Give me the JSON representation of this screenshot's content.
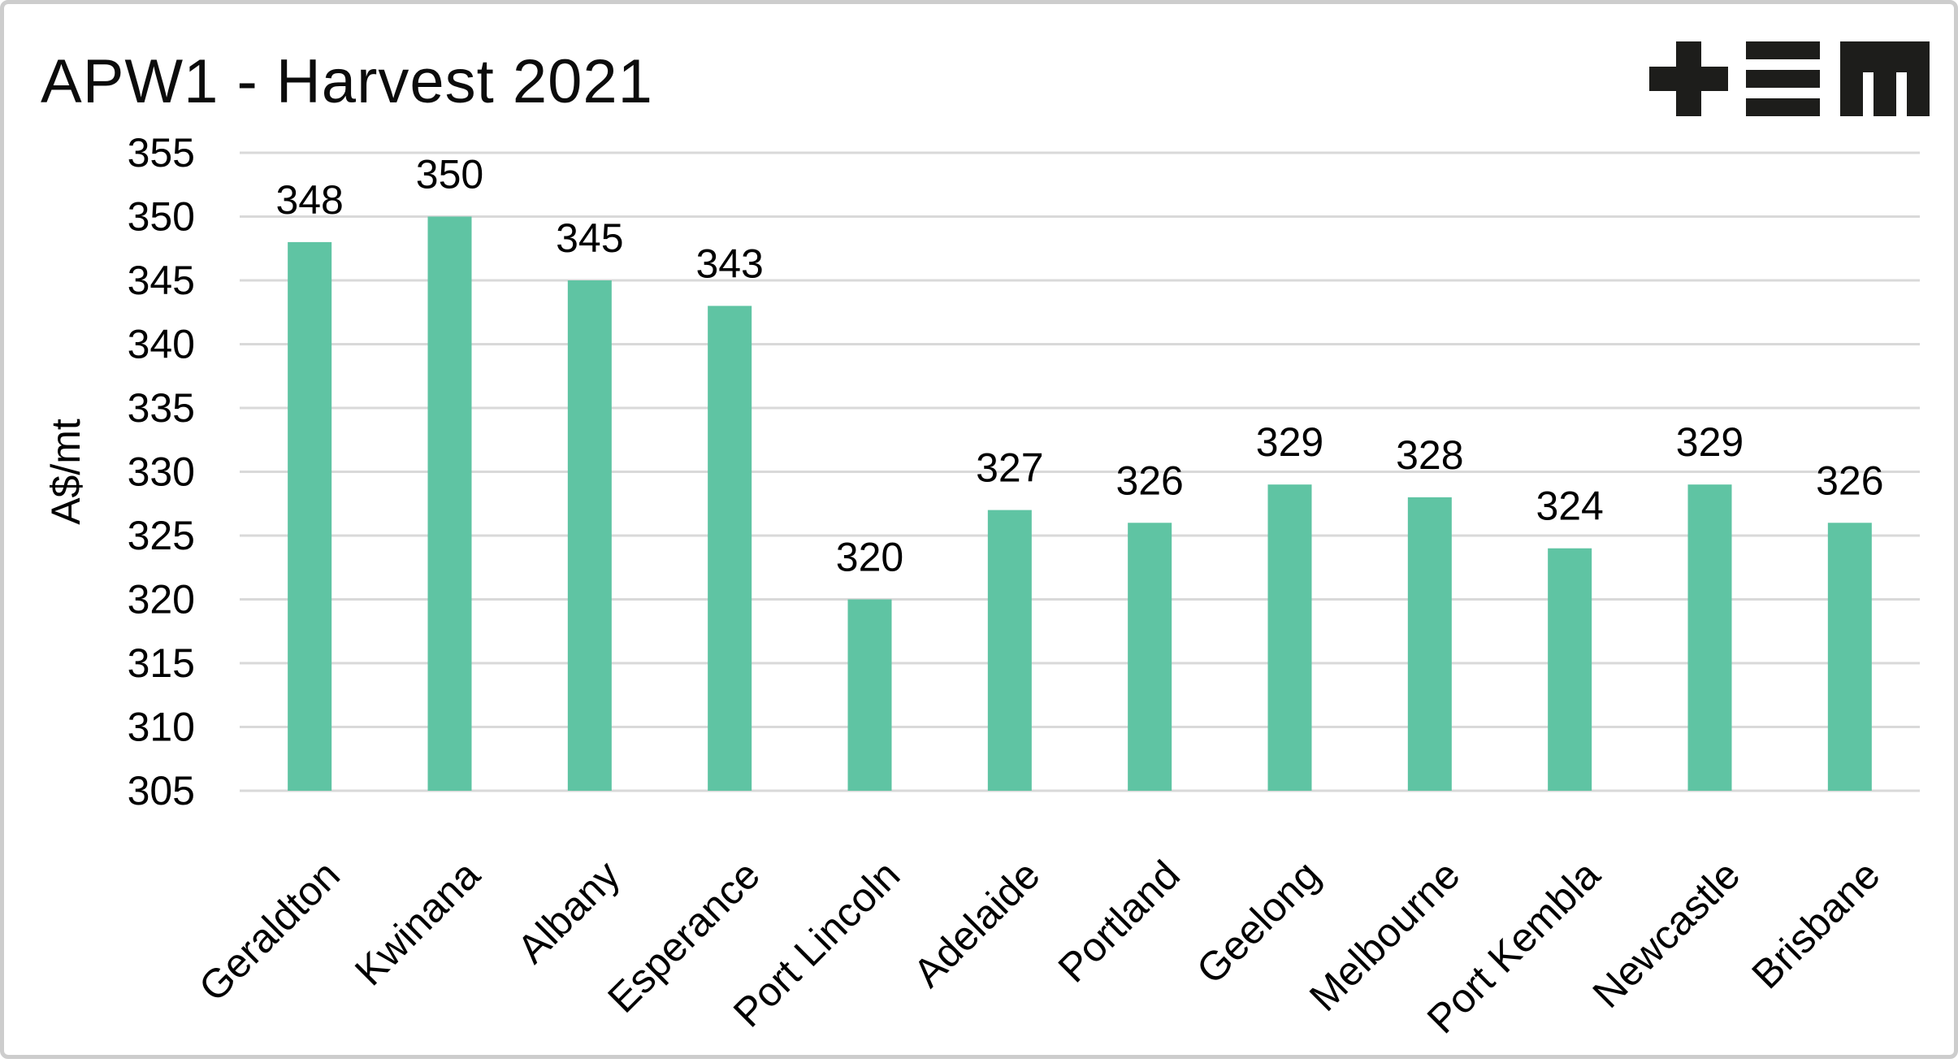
{
  "header": {
    "title": "APW1 - Harvest 2021",
    "logo": "tem-logo"
  },
  "chart_data": {
    "type": "bar",
    "title": "APW1 - Harvest 2021",
    "xlabel": "",
    "ylabel": "A$/mt",
    "ylim": [
      305,
      355
    ],
    "yticks": [
      305,
      310,
      315,
      320,
      325,
      330,
      335,
      340,
      345,
      350,
      355
    ],
    "grid": true,
    "legend_position": "none",
    "categories": [
      "Geraldton",
      "Kwinana",
      "Albany",
      "Esperance",
      "Port Lincoln",
      "Adelaide",
      "Portland",
      "Geelong",
      "Melbourne",
      "Port Kembla",
      "Newcastle",
      "Brisbane"
    ],
    "values": [
      348,
      350,
      345,
      343,
      320,
      327,
      326,
      329,
      328,
      324,
      329,
      326
    ],
    "bar_labels": [
      "348",
      "350",
      "345",
      "343",
      "320",
      "327",
      "326",
      "329",
      "328",
      "324",
      "329",
      "326"
    ],
    "colors": {
      "bar": "#5FC4A3",
      "grid": "#D9D9D9",
      "text": "#000000",
      "background": "#FFFFFF",
      "border": "#CDCDCD",
      "logo": "#1D1D1B"
    }
  }
}
